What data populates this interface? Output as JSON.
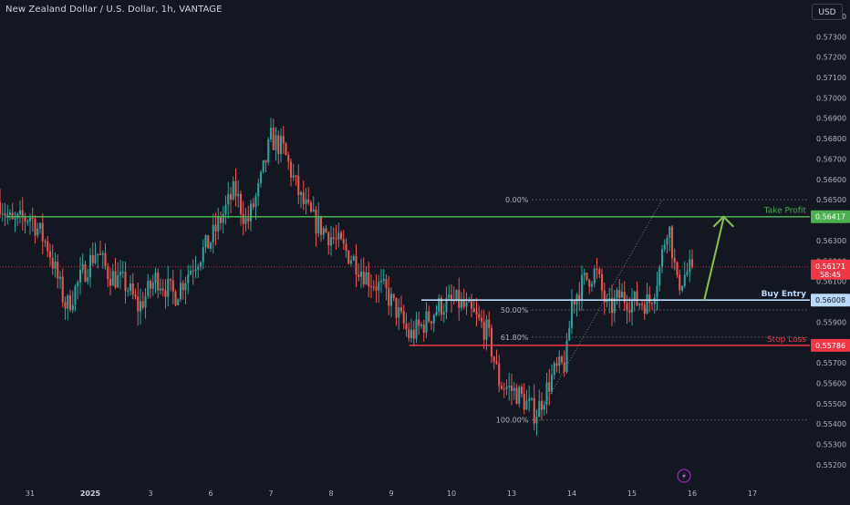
{
  "header": {
    "symbol_title": "New Zealand Dollar / U.S. Dollar, 1h, VANTAGE",
    "currency_label": "USD"
  },
  "colors": {
    "background": "#131722",
    "bull": "#26a69a",
    "bear": "#ef5350",
    "take_profit": "#4caf50",
    "stop_loss": "#f23645",
    "buy_entry": "#bbd9fb",
    "arrow": "#8bc34a",
    "current_price": "#f23645",
    "axis_text": "#b2b5be"
  },
  "chart_data": {
    "type": "candlestick",
    "ylim": [
      0.55155,
      0.5748
    ],
    "y_ticks": [
      0.552,
      0.553,
      0.554,
      0.555,
      0.556,
      0.557,
      0.558,
      0.559,
      0.56,
      0.561,
      0.562,
      0.563,
      0.564,
      0.565,
      0.566,
      0.567,
      0.568,
      0.569,
      0.57,
      0.571,
      0.572,
      0.573,
      0.574
    ],
    "y_tick_labels": [
      "0.55200",
      "0.55300",
      "0.55400",
      "0.55500",
      "0.55600",
      "0.55700",
      "0.55800",
      "0.55900",
      "0.56000",
      "0.56100",
      "0.56200",
      "0.56300",
      "0.56400",
      "0.56500",
      "0.56600",
      "0.56700",
      "0.56800",
      "0.56900",
      "0.57000",
      "0.57100",
      "0.57200",
      "0.57300",
      "0.57400"
    ],
    "x_labels": [
      {
        "label": "31",
        "day": 0.5,
        "bold": false
      },
      {
        "label": "2025",
        "day": 1.5,
        "bold": true
      },
      {
        "label": "3",
        "day": 2.5,
        "bold": false
      },
      {
        "label": "6",
        "day": 3.5,
        "bold": false
      },
      {
        "label": "7",
        "day": 4.5,
        "bold": false
      },
      {
        "label": "8",
        "day": 5.5,
        "bold": false
      },
      {
        "label": "9",
        "day": 6.5,
        "bold": false
      },
      {
        "label": "10",
        "day": 7.5,
        "bold": false
      },
      {
        "label": "13",
        "day": 8.5,
        "bold": false
      },
      {
        "label": "14",
        "day": 9.5,
        "bold": false
      },
      {
        "label": "15",
        "day": 10.5,
        "bold": false
      },
      {
        "label": "16",
        "day": 11.5,
        "bold": false
      },
      {
        "label": "17",
        "day": 12.5,
        "bold": false
      }
    ],
    "price_path": [
      {
        "day": 0.0,
        "price": 0.5649
      },
      {
        "day": 0.2,
        "price": 0.5638
      },
      {
        "day": 0.5,
        "price": 0.5642
      },
      {
        "day": 0.8,
        "price": 0.5627
      },
      {
        "day": 1.1,
        "price": 0.5597
      },
      {
        "day": 1.4,
        "price": 0.5615
      },
      {
        "day": 1.6,
        "price": 0.5625
      },
      {
        "day": 1.8,
        "price": 0.5614
      },
      {
        "day": 2.1,
        "price": 0.5608
      },
      {
        "day": 2.3,
        "price": 0.5597
      },
      {
        "day": 2.6,
        "price": 0.5612
      },
      {
        "day": 2.9,
        "price": 0.5603
      },
      {
        "day": 3.2,
        "price": 0.5618
      },
      {
        "day": 3.5,
        "price": 0.563
      },
      {
        "day": 3.9,
        "price": 0.5655
      },
      {
        "day": 4.1,
        "price": 0.5638
      },
      {
        "day": 4.3,
        "price": 0.5655
      },
      {
        "day": 4.5,
        "price": 0.568
      },
      {
        "day": 4.7,
        "price": 0.5675
      },
      {
        "day": 5.0,
        "price": 0.565
      },
      {
        "day": 5.2,
        "price": 0.564
      },
      {
        "day": 5.5,
        "price": 0.5632
      },
      {
        "day": 5.9,
        "price": 0.562
      },
      {
        "day": 6.1,
        "price": 0.5612
      },
      {
        "day": 6.4,
        "price": 0.5605
      },
      {
        "day": 6.6,
        "price": 0.5595
      },
      {
        "day": 6.8,
        "price": 0.5583
      },
      {
        "day": 7.0,
        "price": 0.5588
      },
      {
        "day": 7.3,
        "price": 0.5598
      },
      {
        "day": 7.6,
        "price": 0.56
      },
      {
        "day": 7.9,
        "price": 0.5592
      },
      {
        "day": 8.1,
        "price": 0.5585
      },
      {
        "day": 8.3,
        "price": 0.556
      },
      {
        "day": 8.6,
        "price": 0.5555
      },
      {
        "day": 8.9,
        "price": 0.5545
      },
      {
        "day": 9.2,
        "price": 0.5565
      },
      {
        "day": 9.4,
        "price": 0.557
      },
      {
        "day": 9.5,
        "price": 0.56
      },
      {
        "day": 9.7,
        "price": 0.561
      },
      {
        "day": 9.9,
        "price": 0.5615
      },
      {
        "day": 10.1,
        "price": 0.5595
      },
      {
        "day": 10.3,
        "price": 0.5603
      },
      {
        "day": 10.5,
        "price": 0.56
      },
      {
        "day": 10.8,
        "price": 0.56
      },
      {
        "day": 10.95,
        "price": 0.5615
      },
      {
        "day": 11.1,
        "price": 0.564
      },
      {
        "day": 11.15,
        "price": 0.563
      },
      {
        "day": 11.25,
        "price": 0.5608
      },
      {
        "day": 11.4,
        "price": 0.5614
      },
      {
        "day": 11.5,
        "price": 0.56171
      }
    ],
    "current_price": {
      "value": "0.56171",
      "timer": "58:45",
      "price": 0.56171
    },
    "levels": [
      {
        "name": "take-profit",
        "label": "Take Profit",
        "value_label": "0.56417",
        "price": 0.56417,
        "day_start": 0.1,
        "day_end": 13.4
      },
      {
        "name": "buy-entry",
        "label": "Buy Entry",
        "value_label": "0.56008",
        "price": 0.56008,
        "day_start": 7.0,
        "day_end": 13.4
      },
      {
        "name": "stop-loss",
        "label": "Stop Loss",
        "value_label": "0.55786",
        "price": 0.55786,
        "day_start": 6.8,
        "day_end": 13.4
      }
    ],
    "fib": {
      "day_start": 8.9,
      "day_end": 11.0,
      "line_end_day": 13.4,
      "low": 0.5542,
      "high": 0.565,
      "levels": [
        {
          "label": "0.00%",
          "price": 0.565
        },
        {
          "label": "50.00%",
          "price": 0.5596
        },
        {
          "label": "61.80%",
          "price": 0.55826
        },
        {
          "label": "100.00%",
          "price": 0.5542
        }
      ]
    },
    "arrow": {
      "from_day": 11.7,
      "from_price": 0.56008,
      "to_day": 12.02,
      "to_price": 0.56417
    }
  }
}
